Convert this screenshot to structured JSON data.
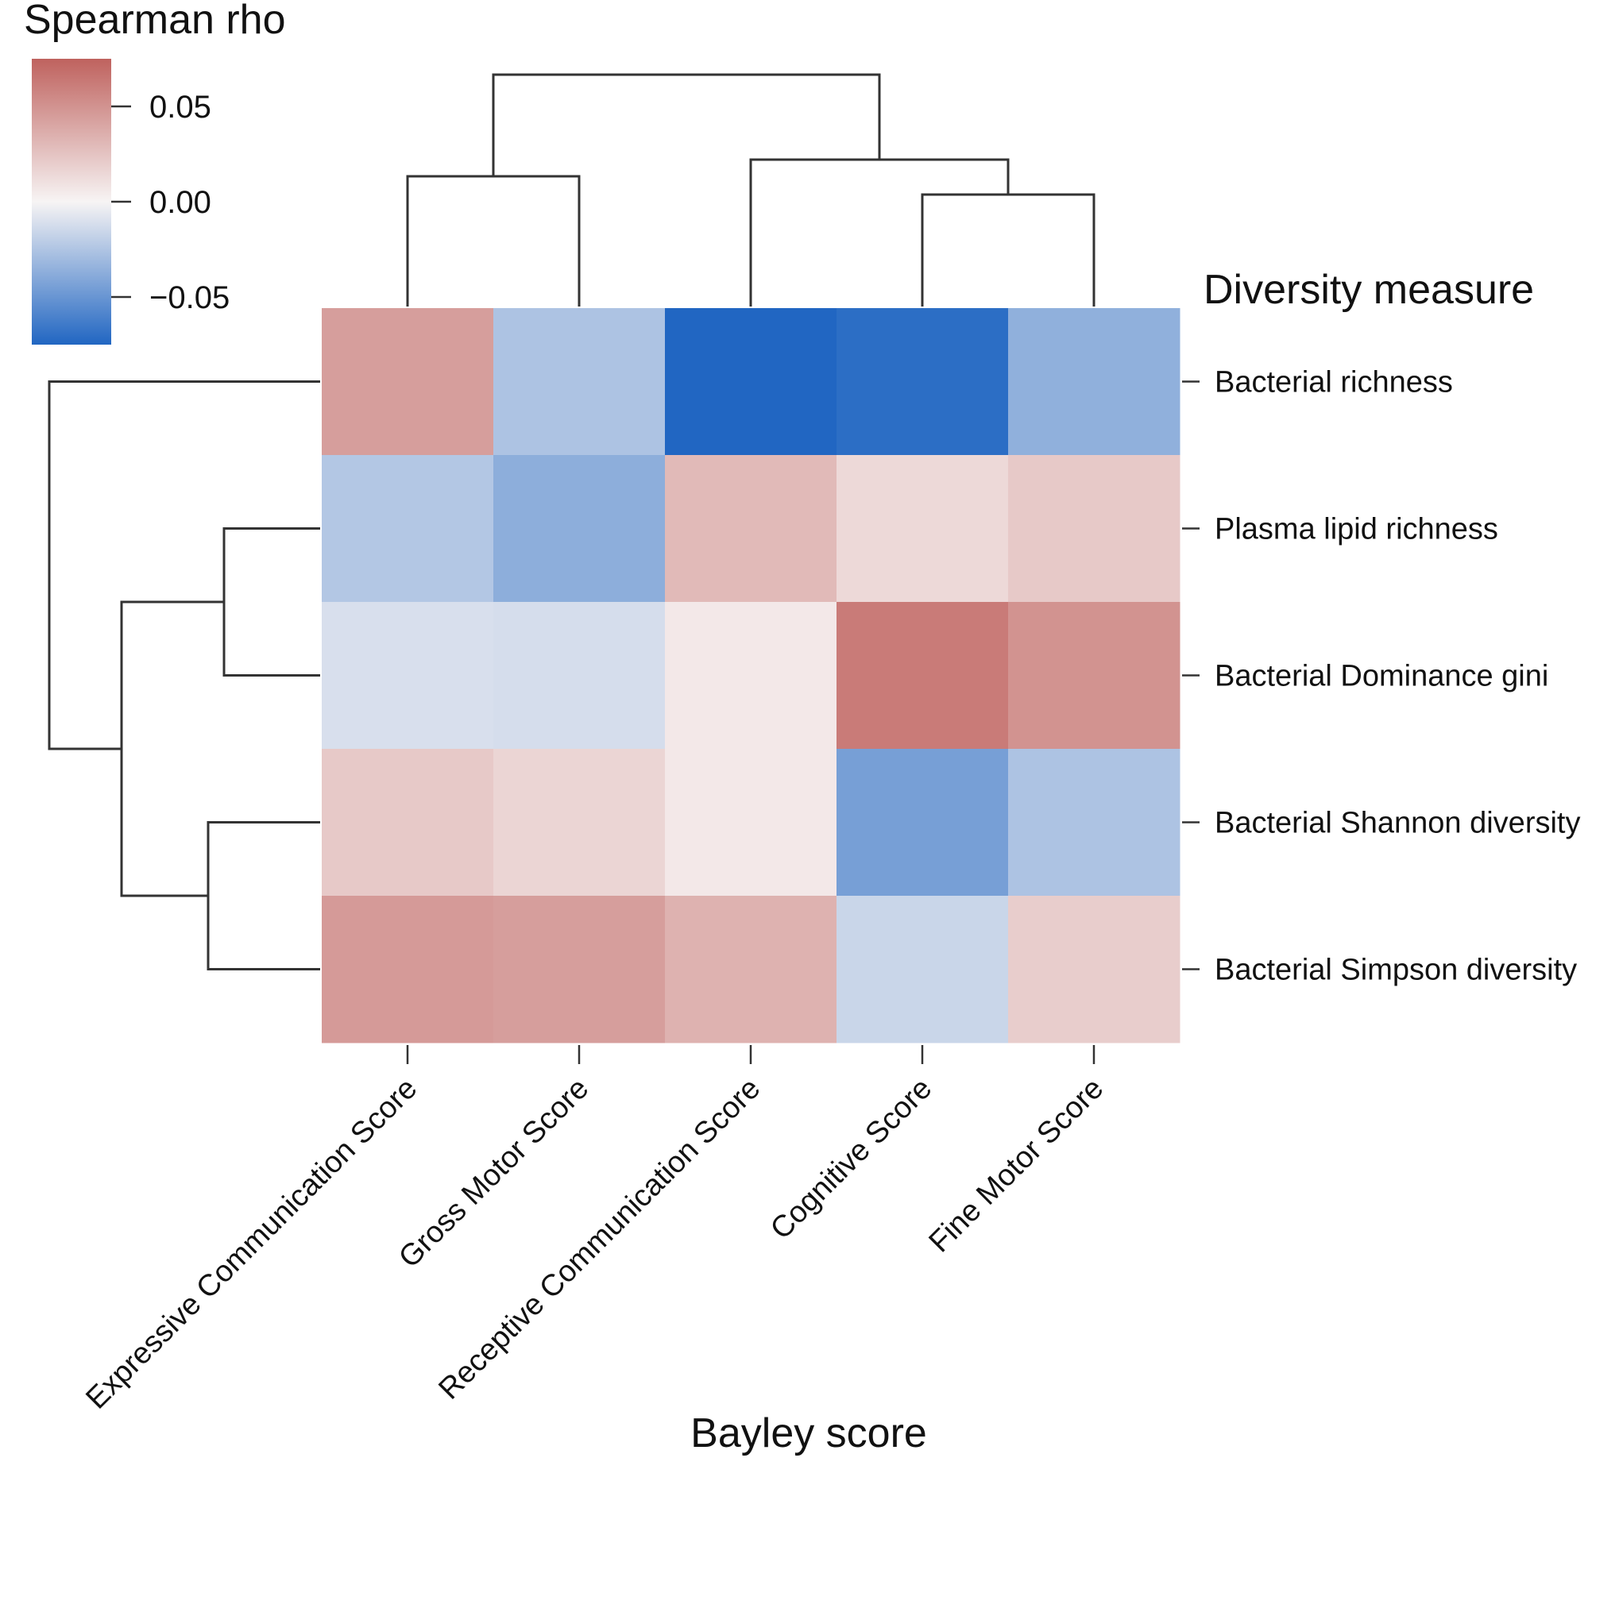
{
  "chart_data": {
    "type": "heatmap",
    "xlabel": "Bayley score",
    "ylabel": "Diversity measure",
    "columns": [
      "Expressive Communication Score",
      "Gross Motor Score",
      "Receptive Communication Score",
      "Cognitive Score",
      "Fine Motor Score"
    ],
    "rows": [
      "Bacterial richness",
      "Plasma lipid richness",
      "Bacterial Dominance gini",
      "Bacterial Shannon diversity",
      "Bacterial Simpson diversity"
    ],
    "values": [
      [
        0.044,
        -0.026,
        -0.075,
        -0.071,
        -0.036
      ],
      [
        -0.024,
        -0.037,
        0.03,
        0.014,
        0.022
      ],
      [
        -0.011,
        -0.012,
        0.006,
        0.062,
        0.05
      ],
      [
        0.022,
        0.016,
        0.006,
        -0.045,
        -0.026
      ],
      [
        0.046,
        0.044,
        0.034,
        -0.016,
        0.02
      ]
    ],
    "col_dendrogram": "((Expressive Communication Score, Gross Motor Score), (Receptive Communication Score, (Cognitive Score, Fine Motor Score)))",
    "row_dendrogram": "(Bacterial richness, ((Plasma lipid richness, Bacterial Dominance gini), (Bacterial Shannon diversity, Bacterial Simpson diversity)))",
    "legend": {
      "title": "Spearman rho",
      "position": "top-left",
      "range": [
        -0.075,
        0.075
      ],
      "ticks": [
        0.05,
        0.0,
        -0.05
      ],
      "tick_labels": [
        "0.05",
        "0.00",
        "−0.05"
      ],
      "colors": {
        "low": "#2166c2",
        "mid": "#f7f4f4",
        "high": "#bf625e"
      }
    }
  }
}
